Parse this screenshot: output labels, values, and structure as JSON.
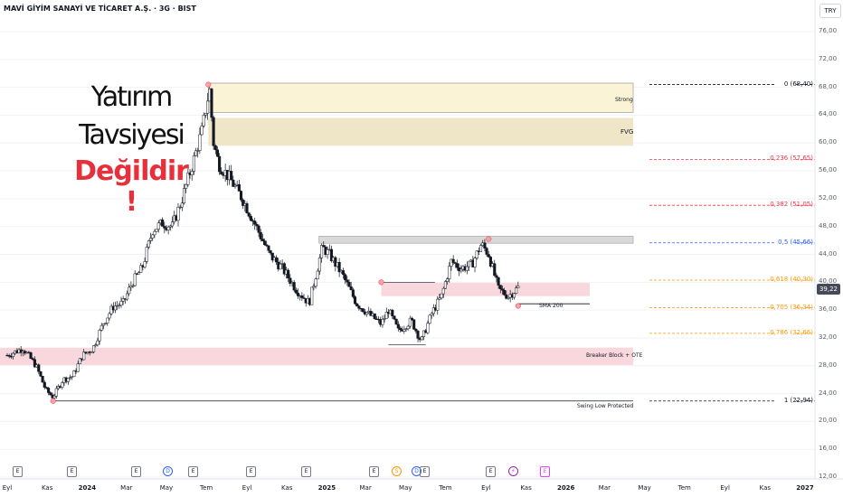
{
  "header": {
    "title": "MAVİ GİYİM SANAYİ VE TİCARET A.Ş. · 3G · BIST",
    "currency": "TRY"
  },
  "annotation": {
    "line1": "Yatırım",
    "line2": "Tavsiyesi",
    "line3": "Değildir !"
  },
  "colors": {
    "up_candle": "#ffffff",
    "down_candle": "#131722",
    "wick": "#131722",
    "fib_zero": "#131722",
    "fib_red": "#f23645",
    "fib_blue": "#2962ff",
    "fib_orange": "#ff9800",
    "zone_pink": "#f8d7dd",
    "zone_yellow": "#fbf3d5",
    "zone_tan": "#efe6c8",
    "zone_grey": "#d9d9d9"
  },
  "price": {
    "current": "39,22"
  },
  "fib_levels": [
    {
      "label": "0 (68,40)",
      "value": 68.4,
      "color": "#131722"
    },
    {
      "label": "0,236 (57,65)",
      "value": 57.65,
      "color": "#f23645"
    },
    {
      "label": "0,382 (51,05)",
      "value": 51.05,
      "color": "#f23645"
    },
    {
      "label": "0,5 (45,66)",
      "value": 45.66,
      "color": "#2962ff"
    },
    {
      "label": "0,618 (40,30)",
      "value": 40.3,
      "color": "#ff9800"
    },
    {
      "label": "0,705 (36,34)",
      "value": 36.34,
      "color": "#ff9800"
    },
    {
      "label": "0,786 (32,66)",
      "value": 32.66,
      "color": "#ff9800"
    },
    {
      "label": "1 (22,94)",
      "value": 22.94,
      "color": "#131722"
    }
  ],
  "zones": {
    "strong": "Strong",
    "fvg": "FVG",
    "breaker": "Breaker Block  + OTE",
    "sma": "SMA 200",
    "swing_low": "Swing Low Protected"
  },
  "chart_data": {
    "type": "candlestick",
    "title": "MAVİ GİYİM SANAYİ VE TİCARET A.Ş. · 3G · BIST",
    "ylim": [
      12,
      80
    ],
    "y_ticks": [
      "76,00",
      "72,00",
      "68,00",
      "64,00",
      "60,00",
      "56,00",
      "52,00",
      "48,00",
      "44,00",
      "40,00",
      "36,00",
      "32,00",
      "28,00",
      "24,00",
      "20,00",
      "16,00",
      "12,00"
    ],
    "x_ticks": [
      {
        "label": "Eyl",
        "bold": false
      },
      {
        "label": "Kas",
        "bold": false
      },
      {
        "label": "2024",
        "bold": true
      },
      {
        "label": "Mar",
        "bold": false
      },
      {
        "label": "May",
        "bold": false
      },
      {
        "label": "Tem",
        "bold": false
      },
      {
        "label": "Eyl",
        "bold": false
      },
      {
        "label": "Kas",
        "bold": false
      },
      {
        "label": "2025",
        "bold": true
      },
      {
        "label": "Mar",
        "bold": false
      },
      {
        "label": "May",
        "bold": false
      },
      {
        "label": "Tem",
        "bold": false
      },
      {
        "label": "Eyl",
        "bold": false
      },
      {
        "label": "Kas",
        "bold": false
      },
      {
        "label": "2026",
        "bold": true
      },
      {
        "label": "Mar",
        "bold": false
      },
      {
        "label": "May",
        "bold": false
      },
      {
        "label": "Tem",
        "bold": false
      },
      {
        "label": "Eyl",
        "bold": false
      },
      {
        "label": "Kas",
        "bold": false
      },
      {
        "label": "2027",
        "bold": true
      }
    ],
    "series": [
      {
        "close_path": [
          [
            "2023-09-01",
            29.5
          ],
          [
            "2023-09-25",
            30.5
          ],
          [
            "2023-10-15",
            28.0
          ],
          [
            "2023-10-30",
            24.5
          ],
          [
            "2023-11-10",
            23.5
          ],
          [
            "2023-11-25",
            26.0
          ],
          [
            "2023-12-10",
            26.5
          ],
          [
            "2023-12-25",
            29.5
          ],
          [
            "2024-01-10",
            30.5
          ],
          [
            "2024-01-25",
            34.0
          ],
          [
            "2024-02-10",
            36.5
          ],
          [
            "2024-02-25",
            37.0
          ],
          [
            "2024-03-10",
            40.0
          ],
          [
            "2024-03-25",
            42.0
          ],
          [
            "2024-04-10",
            47.5
          ],
          [
            "2024-04-25",
            48.5
          ],
          [
            "2024-05-10",
            48.0
          ],
          [
            "2024-05-25",
            52.0
          ],
          [
            "2024-06-10",
            57.0
          ],
          [
            "2024-06-25",
            62.0
          ],
          [
            "2024-07-02",
            66.0
          ],
          [
            "2024-07-06",
            67.5
          ],
          [
            "2024-07-12",
            60.0
          ],
          [
            "2024-07-20",
            57.0
          ],
          [
            "2024-08-05",
            55.0
          ],
          [
            "2024-08-25",
            52.0
          ],
          [
            "2024-09-15",
            48.0
          ],
          [
            "2024-10-05",
            44.0
          ],
          [
            "2024-10-25",
            42.0
          ],
          [
            "2024-11-15",
            39.0
          ],
          [
            "2024-12-05",
            37.0
          ],
          [
            "2024-12-25",
            45.0
          ],
          [
            "2025-01-05",
            44.0
          ],
          [
            "2025-01-25",
            41.0
          ],
          [
            "2025-02-15",
            37.0
          ],
          [
            "2025-03-05",
            35.5
          ],
          [
            "2025-03-25",
            34.0
          ],
          [
            "2025-04-05",
            36.0
          ],
          [
            "2025-04-20",
            33.0
          ],
          [
            "2025-05-10",
            34.5
          ],
          [
            "2025-05-25",
            31.5
          ],
          [
            "2025-06-10",
            35.5
          ],
          [
            "2025-06-25",
            38.0
          ],
          [
            "2025-07-10",
            43.0
          ],
          [
            "2025-07-25",
            42.0
          ],
          [
            "2025-08-10",
            42.5
          ],
          [
            "2025-08-25",
            45.5
          ],
          [
            "2025-09-05",
            44.0
          ],
          [
            "2025-09-20",
            39.0
          ],
          [
            "2025-10-05",
            38.0
          ],
          [
            "2025-10-20",
            39.22
          ]
        ]
      }
    ]
  }
}
